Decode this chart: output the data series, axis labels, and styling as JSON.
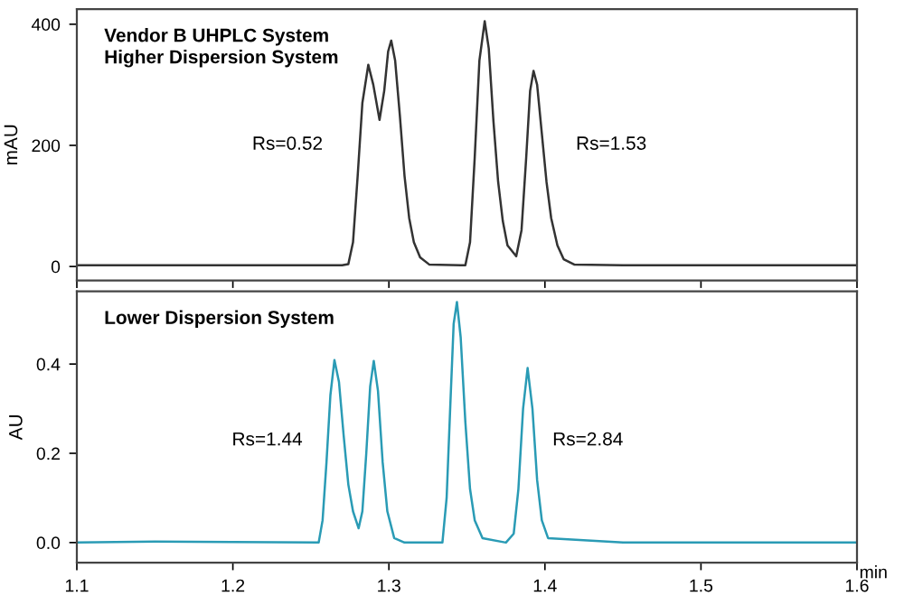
{
  "chart_data": [
    {
      "type": "line",
      "title": "Vendor B UHPLC System\nHigher Dispersion System",
      "ylabel": "mAU",
      "xlim": [
        1.1,
        1.6
      ],
      "xticks": [
        1.1,
        1.2,
        1.3,
        1.4,
        1.5,
        1.6
      ],
      "ylim": [
        -23,
        425
      ],
      "yticks": [
        0,
        200,
        400
      ],
      "tick_labels": "y",
      "grid": false,
      "annotations": [
        "Rs=0.52",
        "Rs=1.53"
      ],
      "series": [
        {
          "color": "#333333",
          "x": [
            1.1,
            1.2,
            1.27,
            1.274,
            1.277,
            1.28,
            1.283,
            1.2868,
            1.29,
            1.294,
            1.297,
            1.2995,
            1.3015,
            1.304,
            1.307,
            1.31,
            1.313,
            1.316,
            1.32,
            1.326,
            1.349,
            1.352,
            1.355,
            1.358,
            1.3614,
            1.364,
            1.367,
            1.37,
            1.373,
            1.376,
            1.3816,
            1.385,
            1.388,
            1.3905,
            1.3927,
            1.395,
            1.398,
            1.401,
            1.404,
            1.408,
            1.412,
            1.419,
            1.45,
            1.5,
            1.6
          ],
          "values": [
            2,
            2,
            2,
            4,
            40,
            150,
            270,
            333,
            300,
            242,
            290,
            355,
            373,
            340,
            250,
            150,
            80,
            40,
            15,
            3,
            2,
            40,
            180,
            340,
            405,
            360,
            240,
            140,
            75,
            35,
            17,
            60,
            180,
            290,
            323,
            300,
            220,
            140,
            80,
            35,
            12,
            3,
            2,
            2,
            2
          ]
        }
      ]
    },
    {
      "type": "line",
      "title": "Lower Dispersion System",
      "ylabel": "AU",
      "xlabel": "min",
      "xlim": [
        1.1,
        1.6
      ],
      "xticks": [
        1.1,
        1.2,
        1.3,
        1.4,
        1.5,
        1.6
      ],
      "ylim": [
        -0.045,
        0.563
      ],
      "yticks": [
        {
          "value": 0,
          "label": "0.0"
        },
        0.2,
        0.4
      ],
      "grid": false,
      "annotations": [
        "Rs=1.44",
        "Rs=2.84"
      ],
      "series": [
        {
          "color": "#2a9bb5",
          "x": [
            1.1,
            1.15,
            1.2,
            1.255,
            1.2575,
            1.26,
            1.2625,
            1.2651,
            1.268,
            1.271,
            1.274,
            1.277,
            1.2806,
            1.283,
            1.2855,
            1.288,
            1.2903,
            1.293,
            1.296,
            1.299,
            1.3034,
            1.31,
            1.3343,
            1.337,
            1.3395,
            1.3415,
            1.3436,
            1.346,
            1.349,
            1.352,
            1.355,
            1.36,
            1.375,
            1.38,
            1.383,
            1.386,
            1.3889,
            1.392,
            1.395,
            1.398,
            1.402,
            1.45,
            1.6
          ],
          "values": [
            0.0,
            0.002,
            0.001,
            0.0,
            0.05,
            0.18,
            0.33,
            0.409,
            0.36,
            0.24,
            0.13,
            0.07,
            0.032,
            0.07,
            0.2,
            0.35,
            0.407,
            0.34,
            0.18,
            0.07,
            0.01,
            0.0,
            0.0,
            0.1,
            0.32,
            0.49,
            0.539,
            0.46,
            0.27,
            0.12,
            0.05,
            0.01,
            0.0,
            0.02,
            0.12,
            0.3,
            0.391,
            0.3,
            0.14,
            0.05,
            0.01,
            0.0,
            0.0
          ]
        }
      ]
    }
  ]
}
